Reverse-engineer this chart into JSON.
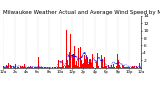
{
  "title": "Milwaukee Weather Actual and Average Wind Speed by Minute mph (Last 24 Hours)",
  "title_fontsize": 4.0,
  "n_points": 1440,
  "bar_color": "#ff0000",
  "avg_line_color": "#0000ff",
  "background_color": "#ffffff",
  "plot_bg_color": "#ffffff",
  "ylim": [
    0,
    14
  ],
  "yticks": [
    2,
    4,
    6,
    8,
    10,
    12,
    14
  ],
  "ytick_fontsize": 3.2,
  "xtick_fontsize": 2.8,
  "grid_color": "#999999",
  "seed": 42
}
